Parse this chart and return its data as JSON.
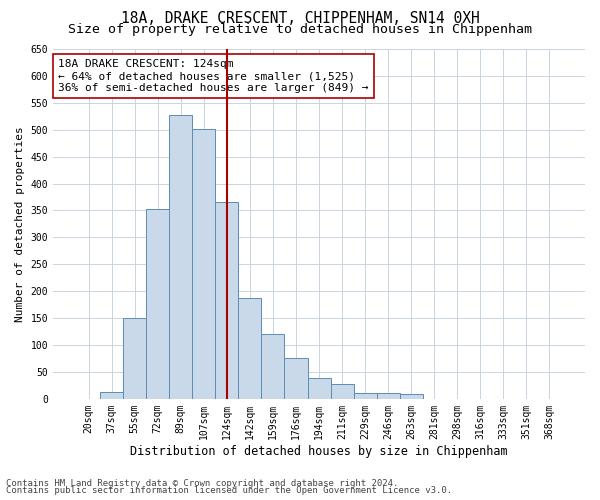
{
  "title1": "18A, DRAKE CRESCENT, CHIPPENHAM, SN14 0XH",
  "title2": "Size of property relative to detached houses in Chippenham",
  "xlabel": "Distribution of detached houses by size in Chippenham",
  "ylabel": "Number of detached properties",
  "categories": [
    "20sqm",
    "37sqm",
    "55sqm",
    "72sqm",
    "89sqm",
    "107sqm",
    "124sqm",
    "142sqm",
    "159sqm",
    "176sqm",
    "194sqm",
    "211sqm",
    "229sqm",
    "246sqm",
    "263sqm",
    "281sqm",
    "298sqm",
    "316sqm",
    "333sqm",
    "351sqm",
    "368sqm"
  ],
  "values": [
    0,
    13,
    150,
    352,
    528,
    501,
    365,
    187,
    120,
    75,
    38,
    27,
    11,
    11,
    9,
    0,
    0,
    0,
    0,
    0,
    0
  ],
  "bar_color": "#c9d9ea",
  "bar_edge_color": "#5b8db8",
  "vline_x": 6,
  "vline_color": "#aa0000",
  "annotation_text": "18A DRAKE CRESCENT: 124sqm\n← 64% of detached houses are smaller (1,525)\n36% of semi-detached houses are larger (849) →",
  "annotation_box_color": "#ffffff",
  "annotation_box_edge_color": "#aa0000",
  "ylim": [
    0,
    650
  ],
  "yticks": [
    0,
    50,
    100,
    150,
    200,
    250,
    300,
    350,
    400,
    450,
    500,
    550,
    600,
    650
  ],
  "footer1": "Contains HM Land Registry data © Crown copyright and database right 2024.",
  "footer2": "Contains public sector information licensed under the Open Government Licence v3.0.",
  "background_color": "#ffffff",
  "grid_color": "#c8d4e0",
  "title1_fontsize": 10.5,
  "title2_fontsize": 9.5,
  "xlabel_fontsize": 8.5,
  "ylabel_fontsize": 8,
  "tick_fontsize": 7,
  "annotation_fontsize": 8,
  "footer_fontsize": 6.5
}
